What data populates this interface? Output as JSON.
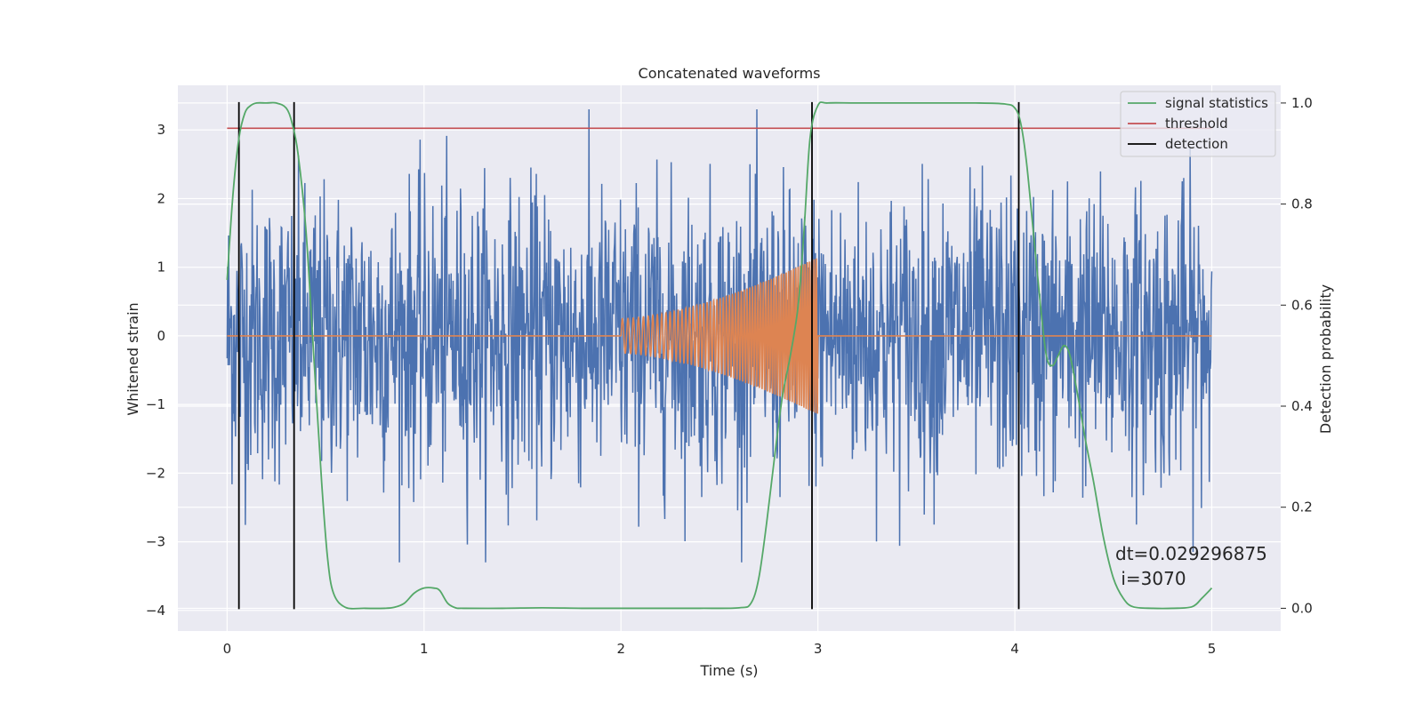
{
  "chart_data": {
    "type": "line",
    "title": "Concatenated waveforms",
    "xlabel": "Time (s)",
    "ylabel": "Whitened strain",
    "y2label": "Detection probability",
    "xlim": [
      -0.25,
      5.35
    ],
    "ylim": [
      -4.3,
      3.65
    ],
    "y2lim": [
      -0.045,
      1.035
    ],
    "xticks": [
      0,
      1,
      2,
      3,
      4,
      5
    ],
    "yticks": [
      -4,
      -3,
      -2,
      -1,
      0,
      1,
      2,
      3
    ],
    "y2ticks": [
      0.0,
      0.2,
      0.4,
      0.6,
      0.8,
      1.0
    ],
    "grid": true,
    "legend_position": "top-right",
    "colors": {
      "background": "#eaeaf2",
      "strain": "#4c72b0",
      "template": "#dd8452",
      "signal_statistics": "#55a868",
      "threshold": "#c44e52",
      "detection": "#000000"
    },
    "legend": [
      {
        "label": "signal statistics",
        "color": "#55a868"
      },
      {
        "label": "threshold",
        "color": "#c44e52"
      },
      {
        "label": "detection",
        "color": "#000000"
      }
    ],
    "annotation": {
      "line1": "dt=0.029296875",
      "line2": " i=3070"
    },
    "series": [
      {
        "name": "signal statistics",
        "axis": "right",
        "x": [
          0.0,
          0.03,
          0.06,
          0.09,
          0.12,
          0.15,
          0.2,
          0.25,
          0.3,
          0.33,
          0.36,
          0.4,
          0.44,
          0.48,
          0.51,
          0.54,
          0.6,
          0.7,
          0.8,
          0.85,
          0.9,
          0.95,
          1.0,
          1.05,
          1.08,
          1.12,
          1.16,
          1.2,
          1.4,
          1.6,
          1.8,
          2.0,
          2.2,
          2.4,
          2.6,
          2.66,
          2.7,
          2.74,
          2.78,
          2.82,
          2.86,
          2.9,
          2.93,
          2.96,
          3.0,
          3.05,
          3.2,
          3.5,
          3.8,
          3.95,
          4.0,
          4.03,
          4.06,
          4.1,
          4.13,
          4.16,
          4.19,
          4.22,
          4.25,
          4.28,
          4.32,
          4.36,
          4.4,
          4.45,
          4.5,
          4.55,
          4.6,
          4.7,
          4.8,
          4.9,
          4.95,
          5.0
        ],
        "y": [
          0.65,
          0.82,
          0.93,
          0.98,
          0.995,
          1.0,
          1.0,
          1.0,
          0.99,
          0.96,
          0.9,
          0.75,
          0.5,
          0.25,
          0.1,
          0.03,
          0.002,
          0.0,
          0.0,
          0.002,
          0.01,
          0.03,
          0.04,
          0.04,
          0.035,
          0.01,
          0.001,
          0.0,
          0.0,
          0.001,
          0.0,
          0.0,
          0.0,
          0.0,
          0.001,
          0.01,
          0.06,
          0.17,
          0.3,
          0.42,
          0.5,
          0.6,
          0.75,
          0.93,
          0.995,
          1.0,
          1.0,
          1.0,
          1.0,
          0.998,
          0.99,
          0.96,
          0.88,
          0.72,
          0.6,
          0.5,
          0.48,
          0.5,
          0.52,
          0.5,
          0.42,
          0.33,
          0.25,
          0.14,
          0.06,
          0.02,
          0.003,
          0.0,
          0.0,
          0.003,
          0.02,
          0.04
        ]
      },
      {
        "name": "threshold",
        "axis": "right",
        "x": [
          0.0,
          5.0
        ],
        "y": [
          0.95,
          0.95
        ]
      },
      {
        "name": "detection",
        "type": "vlines",
        "x": [
          0.06,
          0.34,
          2.97,
          4.02
        ]
      },
      {
        "name": "strain (whitened noise)",
        "axis": "left",
        "x_range": [
          0.0,
          5.0
        ],
        "sample_count": 2000,
        "typical_amplitude": 1.05,
        "max_abs": 3.3
      },
      {
        "name": "template (chirp)",
        "axis": "left",
        "x_range": [
          0.0,
          5.0
        ],
        "chirp_start": 2.0,
        "chirp_end": 3.0,
        "amplitude_start": 0.25,
        "amplitude_end": 1.15,
        "cycles": 62
      }
    ]
  }
}
